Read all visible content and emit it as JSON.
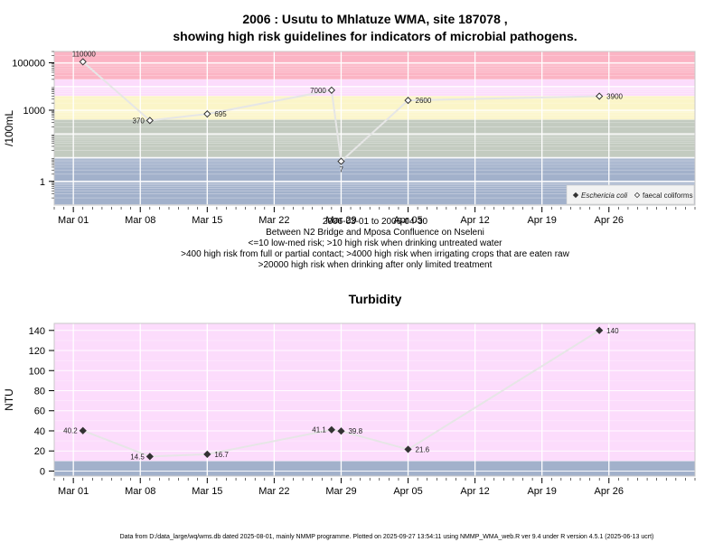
{
  "chart_data": [
    {
      "type": "line",
      "title": "2006 : Usutu to Mhlatuze WMA, site 187078 ,",
      "subtitle": "showing high risk guidelines for indicators of microbial pathogens.",
      "ylabel": "/100mL",
      "yscale": "log",
      "ylim": [
        0.1,
        300000
      ],
      "xlim": [
        "2006-02-27",
        "2006-05-05"
      ],
      "x_ticks": [
        {
          "date": "2006-03-01",
          "label": "Mar 01"
        },
        {
          "date": "2006-03-08",
          "label": "Mar 08"
        },
        {
          "date": "2006-03-15",
          "label": "Mar 15"
        },
        {
          "date": "2006-03-22",
          "label": "Mar 22"
        },
        {
          "date": "2006-03-29",
          "label": "Mar 29"
        },
        {
          "date": "2006-04-05",
          "label": "Apr 05"
        },
        {
          "date": "2006-04-12",
          "label": "Apr 12"
        },
        {
          "date": "2006-04-19",
          "label": "Apr 19"
        },
        {
          "date": "2006-04-26",
          "label": "Apr 26"
        }
      ],
      "y_ticks": [
        {
          "value": 1,
          "label": "1"
        },
        {
          "value": 1000,
          "label": "1000"
        },
        {
          "value": 100000,
          "label": "100000"
        }
      ],
      "bands": [
        {
          "from": 0.1,
          "to": 10,
          "color": "#a2b1cb"
        },
        {
          "from": 10,
          "to": 400,
          "color": "#c3cbc0"
        },
        {
          "from": 400,
          "to": 4000,
          "color": "#fbf5c8"
        },
        {
          "from": 4000,
          "to": 20000,
          "color": "#fcdcfc"
        },
        {
          "from": 20000,
          "to": 300000,
          "color": "#fbb4c4"
        }
      ],
      "series": [
        {
          "name": "Eschericia coli",
          "marker": "filled-diamond",
          "x": [],
          "y": [],
          "labels": []
        },
        {
          "name": "faecal coliforms",
          "marker": "open-diamond",
          "x": [
            "2006-03-02",
            "2006-03-09",
            "2006-03-15",
            "2006-03-28",
            "2006-03-29",
            "2006-04-05",
            "2006-04-25"
          ],
          "y": [
            110000,
            370,
            695,
            7000,
            7,
            2600,
            3900
          ],
          "labels": [
            "110000",
            "370",
            "695",
            "7000",
            "7",
            "2600",
            "3900"
          ]
        }
      ],
      "legend_position": "bottom-right",
      "caption_lines": [
        "2006-03-01 to 2006-04-30",
        "Between N2 Bridge and Mposa Confluence on Nseleni",
        "<=10 low-med risk; >10 high risk when drinking untreated water",
        ">400 high risk from full or partial contact; >4000 high risk when irrigating crops that are eaten raw",
        ">20000 high risk when drinking after only limited treatment"
      ],
      "grid": true
    },
    {
      "type": "line",
      "title": "Turbidity",
      "ylabel": "NTU",
      "ylim": [
        -5,
        147
      ],
      "xlim": [
        "2006-02-27",
        "2006-05-05"
      ],
      "x_ticks": [
        {
          "date": "2006-03-01",
          "label": "Mar 01"
        },
        {
          "date": "2006-03-08",
          "label": "Mar 08"
        },
        {
          "date": "2006-03-15",
          "label": "Mar 15"
        },
        {
          "date": "2006-03-22",
          "label": "Mar 22"
        },
        {
          "date": "2006-03-29",
          "label": "Mar 29"
        },
        {
          "date": "2006-04-05",
          "label": "Apr 05"
        },
        {
          "date": "2006-04-12",
          "label": "Apr 12"
        },
        {
          "date": "2006-04-19",
          "label": "Apr 19"
        },
        {
          "date": "2006-04-26",
          "label": "Apr 26"
        }
      ],
      "y_ticks": [
        {
          "value": 0,
          "label": "0"
        },
        {
          "value": 20,
          "label": "20"
        },
        {
          "value": 40,
          "label": "40"
        },
        {
          "value": 60,
          "label": "60"
        },
        {
          "value": 80,
          "label": "80"
        },
        {
          "value": 100,
          "label": "100"
        },
        {
          "value": 120,
          "label": "120"
        },
        {
          "value": 140,
          "label": "140"
        }
      ],
      "bands": [
        {
          "from": -5,
          "to": 10,
          "color": "#a2b1cb"
        },
        {
          "from": 10,
          "to": 147,
          "color": "#fcdcfc"
        }
      ],
      "series": [
        {
          "marker": "filled-diamond",
          "x": [
            "2006-03-02",
            "2006-03-09",
            "2006-03-15",
            "2006-03-28",
            "2006-03-29",
            "2006-04-05",
            "2006-04-25"
          ],
          "y": [
            40.2,
            14.5,
            16.7,
            41.1,
            39.8,
            21.6,
            140
          ],
          "labels": [
            "40.2",
            "14.5",
            "16.7",
            "41.1",
            "39.8",
            "21.6",
            "140"
          ]
        }
      ],
      "grid": true
    }
  ],
  "footer": "Data from D:/data_large/wq/wms.db dated 2025-08-01, mainly NMMP programme. Plotted on 2025-09-27 13:54:11 using NMMP_WMA_web.R ver 9.4 under R version 4.5.1 (2025-06-13 ucrt)"
}
